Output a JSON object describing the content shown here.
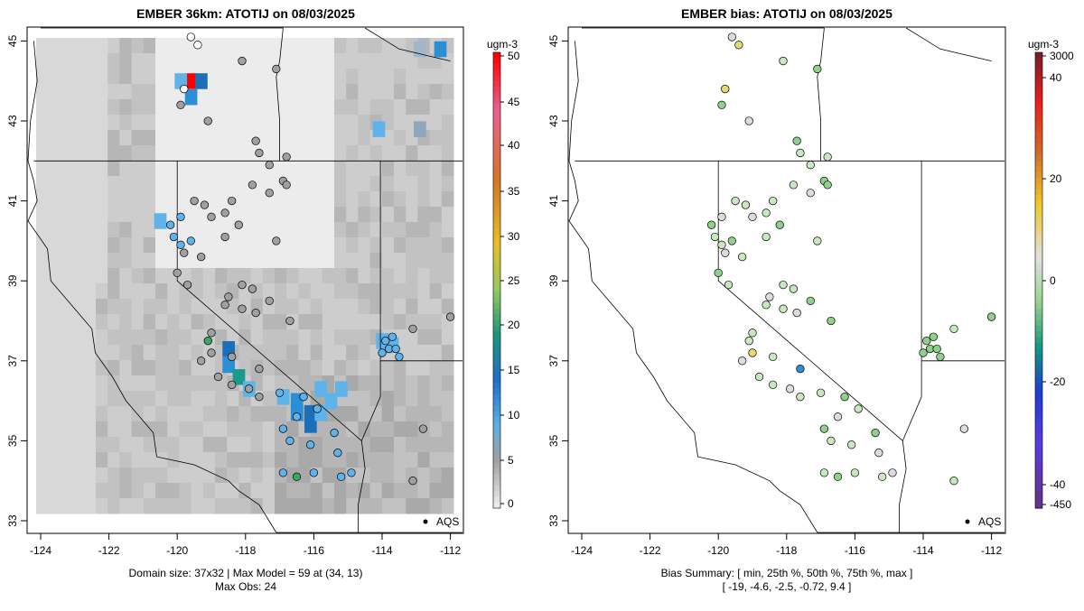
{
  "left_panel": {
    "title": "EMBER 36km: ATOTIJ on 08/03/2025",
    "colorbar_unit": "ugm-3",
    "colorbar_labels": [
      "50",
      "45",
      "40",
      "35",
      "30",
      "25",
      "20",
      "15",
      "10",
      "5",
      "0"
    ],
    "footer_line1": "Domain size: 37x32 | Max Model = 59 at (34, 13)",
    "footer_line2": "Max Obs: 24",
    "legend_label": "AQS"
  },
  "right_panel": {
    "title": "EMBER bias: ATOTIJ on 08/03/2025",
    "colorbar_unit": "ugm-3",
    "colorbar_labels": [
      "3000",
      "40",
      "20",
      "0",
      "-20",
      "-40",
      "-450"
    ],
    "footer_line1": "Bias Summary: [ min, 25th %, 50th %, 75th %, max ]",
    "footer_line2": "[ -19,   -4.6,   -2.5,   -0.72,   9.4 ]",
    "legend_label": "AQS"
  },
  "axes": {
    "x_ticks": [
      "-124",
      "-122",
      "-120",
      "-118",
      "-116",
      "-114",
      "-112"
    ],
    "y_ticks": [
      "33",
      "35",
      "37",
      "39",
      "41",
      "43",
      "45"
    ]
  },
  "colors": {
    "grey_light": "#e6e6e6",
    "grey_mid": "#bdbdbd",
    "grey_dark": "#8f8f8f",
    "blue_light": "#5fb3e8",
    "blue_mid": "#2b8fd6",
    "blue_dark": "#1a6fb8",
    "teal": "#1a9a8a",
    "green": "#3aa860",
    "red": "#ff0000",
    "bias_pale_green": "#c8e8c0",
    "bias_green": "#8fd08a",
    "bias_near_zero": "#dcdcdc",
    "bias_yellow": "#e8d870"
  }
}
